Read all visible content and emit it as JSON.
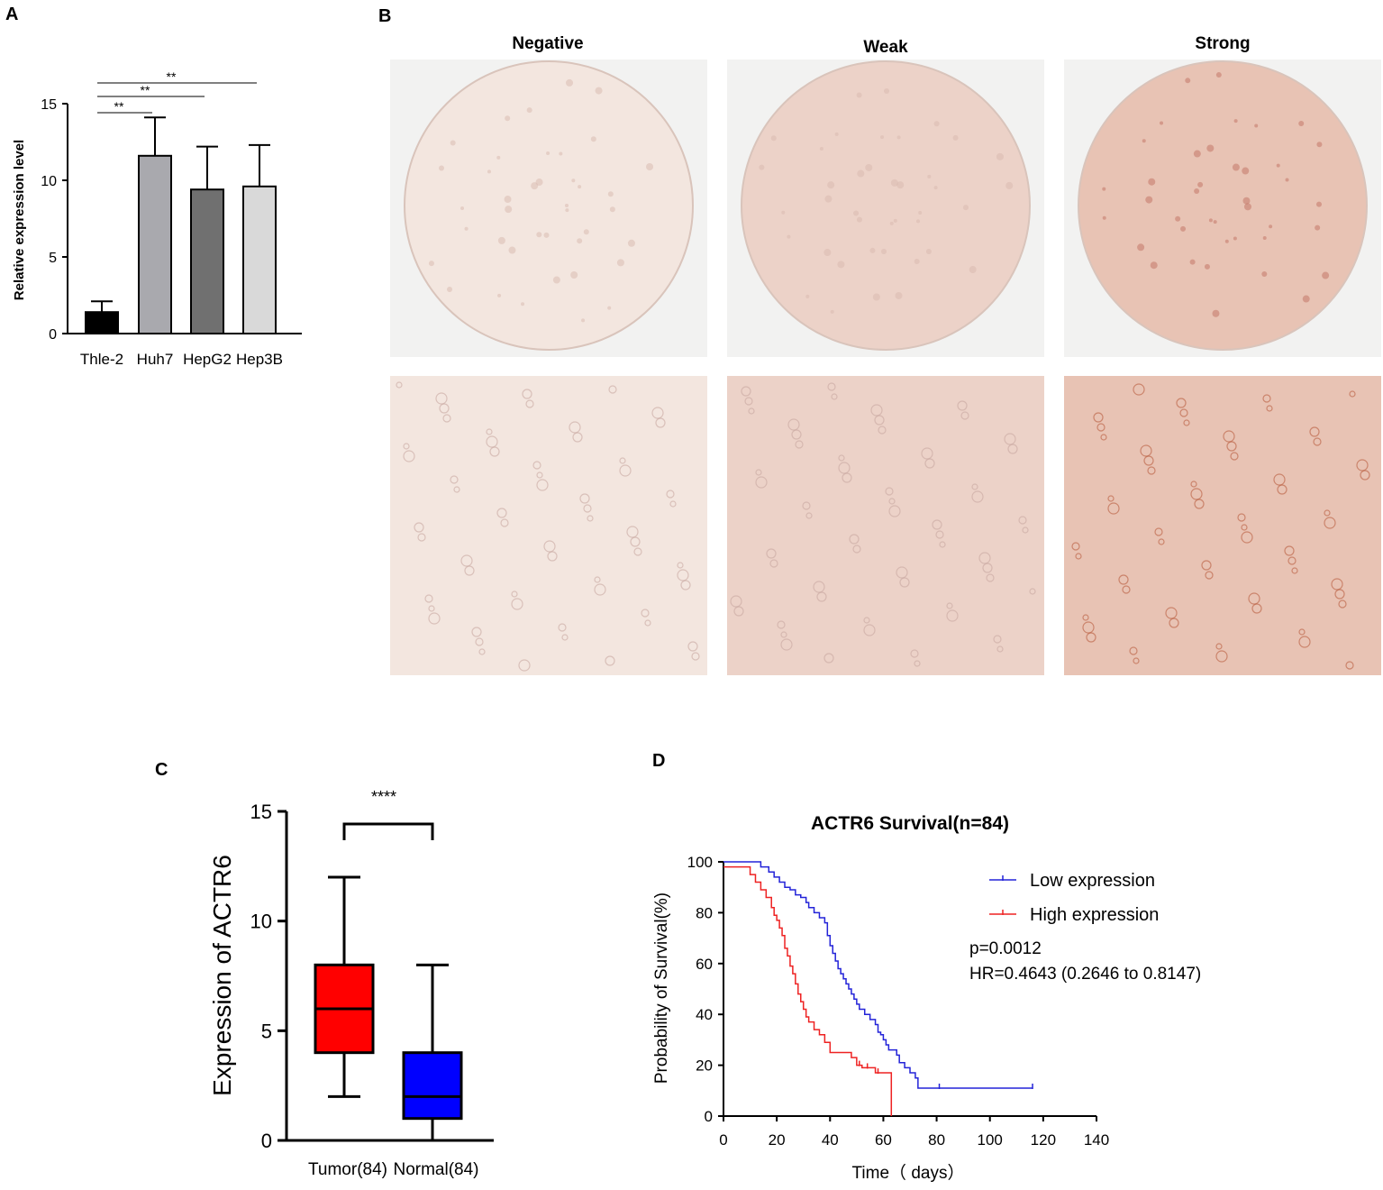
{
  "panels": {
    "a": "A",
    "b": "B",
    "c": "C",
    "d": "D"
  },
  "ihc": {
    "headers": [
      "Negative",
      "Weak",
      "Strong"
    ],
    "tint": [
      "#f3e6df",
      "#ecd2c8",
      "#e8c3b4"
    ]
  },
  "chart_data": [
    {
      "id": "A",
      "type": "bar",
      "categories": [
        "Thle-2",
        "Huh7",
        "HepG2",
        "Hep3B"
      ],
      "values": [
        1.4,
        11.6,
        9.4,
        9.6
      ],
      "errors": [
        0.7,
        2.5,
        2.8,
        2.7
      ],
      "ylabel": "Relative expression level",
      "ylim": [
        0,
        15
      ],
      "yticks": [
        "0",
        "5",
        "10",
        "15"
      ],
      "bar_colors": [
        "#000000",
        "#a9a9ae",
        "#707070",
        "#d9d9d9"
      ],
      "significance": [
        {
          "from": "Thle-2",
          "to": "Huh7",
          "label": "**"
        },
        {
          "from": "Thle-2",
          "to": "HepG2",
          "label": "**"
        },
        {
          "from": "Thle-2",
          "to": "Hep3B",
          "label": "**"
        }
      ]
    },
    {
      "id": "C",
      "type": "box",
      "categories": [
        "Tumor(84)",
        "Normal(84)"
      ],
      "boxes": [
        {
          "min": 2,
          "q1": 4,
          "median": 6,
          "q3": 8,
          "max": 12,
          "color": "#ff0000"
        },
        {
          "min": 0,
          "q1": 1,
          "median": 2,
          "q3": 4,
          "max": 8,
          "color": "#0000ff"
        }
      ],
      "ylabel": "Expression of ACTR6",
      "ylim": [
        0,
        15
      ],
      "yticks": [
        "0",
        "5",
        "10",
        "15"
      ],
      "significance": "****"
    },
    {
      "id": "D",
      "type": "line",
      "title": "ACTR6 Survival(n=84)",
      "xlabel": "Time（ days）",
      "ylabel": "Probability of Survival(%)",
      "xlim": [
        0,
        140
      ],
      "ylim": [
        0,
        100
      ],
      "xticks": [
        "0",
        "20",
        "40",
        "60",
        "80",
        "100",
        "120",
        "140"
      ],
      "yticks": [
        "0",
        "20",
        "40",
        "60",
        "80",
        "100"
      ],
      "series": [
        {
          "name": "Low expression",
          "color": "#2323d8",
          "points": [
            [
              0,
              100
            ],
            [
              12,
              100
            ],
            [
              14,
              98
            ],
            [
              17,
              96
            ],
            [
              19,
              94
            ],
            [
              21,
              92
            ],
            [
              23,
              90
            ],
            [
              25,
              89
            ],
            [
              27,
              87
            ],
            [
              29,
              86
            ],
            [
              31,
              84
            ],
            [
              32,
              82
            ],
            [
              34,
              80
            ],
            [
              36,
              78
            ],
            [
              38,
              76
            ],
            [
              39,
              71
            ],
            [
              40,
              67
            ],
            [
              41,
              64
            ],
            [
              42,
              61
            ],
            [
              43,
              58
            ],
            [
              44,
              56
            ],
            [
              45,
              54
            ],
            [
              46,
              52
            ],
            [
              47,
              50
            ],
            [
              48,
              48
            ],
            [
              49,
              46
            ],
            [
              50,
              44
            ],
            [
              51,
              42
            ],
            [
              53,
              40
            ],
            [
              55,
              38
            ],
            [
              57,
              36
            ],
            [
              58,
              33
            ],
            [
              59,
              32
            ],
            [
              60,
              30
            ],
            [
              61,
              28
            ],
            [
              62,
              26
            ],
            [
              65,
              24
            ],
            [
              66,
              21
            ],
            [
              68,
              19
            ],
            [
              70,
              17
            ],
            [
              72,
              15
            ],
            [
              73,
              11
            ],
            [
              116,
              11
            ]
          ],
          "censor_x": [
            81,
            116
          ]
        },
        {
          "name": "High expression",
          "color": "#ee2222",
          "points": [
            [
              0,
              98
            ],
            [
              8,
              98
            ],
            [
              10,
              95
            ],
            [
              12,
              92
            ],
            [
              14,
              89
            ],
            [
              16,
              86
            ],
            [
              18,
              82
            ],
            [
              19,
              79
            ],
            [
              20,
              77
            ],
            [
              21,
              74
            ],
            [
              22,
              71
            ],
            [
              23,
              66
            ],
            [
              24,
              63
            ],
            [
              25,
              59
            ],
            [
              26,
              56
            ],
            [
              27,
              52
            ],
            [
              28,
              48
            ],
            [
              29,
              45
            ],
            [
              30,
              42
            ],
            [
              31,
              39
            ],
            [
              32,
              37
            ],
            [
              34,
              34
            ],
            [
              36,
              32
            ],
            [
              38,
              29
            ],
            [
              40,
              25
            ],
            [
              48,
              23
            ],
            [
              50,
              20
            ],
            [
              52,
              19
            ],
            [
              55,
              19
            ],
            [
              57,
              17
            ],
            [
              62,
              17
            ],
            [
              63,
              0
            ]
          ],
          "censor_x": [
            51,
            54,
            58
          ]
        }
      ],
      "annotations": [
        "p=0.0012",
        "HR=0.4643 (0.2646 to 0.8147)"
      ]
    }
  ]
}
